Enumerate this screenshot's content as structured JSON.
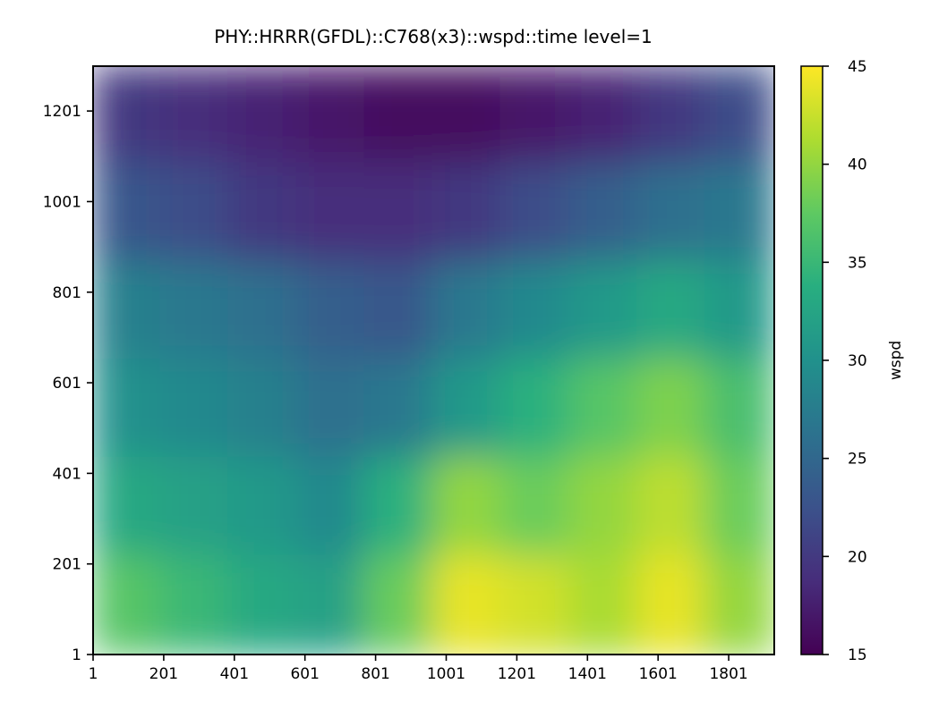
{
  "chart_data": {
    "type": "heatmap",
    "title": "PHY::HRRR(GFDL)::C768(x3)::wspd::time level=1",
    "xlabel": "",
    "ylabel": "",
    "xlim": [
      1,
      1930
    ],
    "ylim": [
      1,
      1300
    ],
    "x_ticks": [
      "1",
      "201",
      "401",
      "601",
      "801",
      "1001",
      "1201",
      "1401",
      "1601",
      "1801"
    ],
    "x_tick_values": [
      1,
      201,
      401,
      601,
      801,
      1001,
      1201,
      1401,
      1601,
      1801
    ],
    "y_ticks": [
      "1",
      "201",
      "401",
      "601",
      "801",
      "1001",
      "1201"
    ],
    "y_tick_values": [
      1,
      201,
      401,
      601,
      801,
      1001,
      1201
    ],
    "colorbar": {
      "label": "wspd",
      "colormap": "viridis",
      "vmin": 15,
      "vmax": 45,
      "ticks": [
        "15",
        "20",
        "25",
        "30",
        "35",
        "40",
        "45"
      ],
      "tick_values": [
        15,
        20,
        25,
        30,
        35,
        40,
        45
      ]
    },
    "grid": false,
    "field_description_rows_top_to_bottom": [
      [
        20,
        19,
        18,
        17,
        16,
        16,
        17,
        18,
        20,
        22
      ],
      [
        23,
        22,
        20,
        19,
        19,
        20,
        22,
        24,
        26,
        27
      ],
      [
        28,
        27,
        26,
        24,
        23,
        27,
        29,
        31,
        33,
        31
      ],
      [
        30,
        29,
        28,
        26,
        27,
        31,
        34,
        37,
        39,
        36
      ],
      [
        33,
        32,
        31,
        29,
        34,
        40,
        38,
        40,
        42,
        38
      ],
      [
        37,
        35,
        33,
        32,
        38,
        44,
        43,
        41,
        44,
        40
      ]
    ]
  }
}
